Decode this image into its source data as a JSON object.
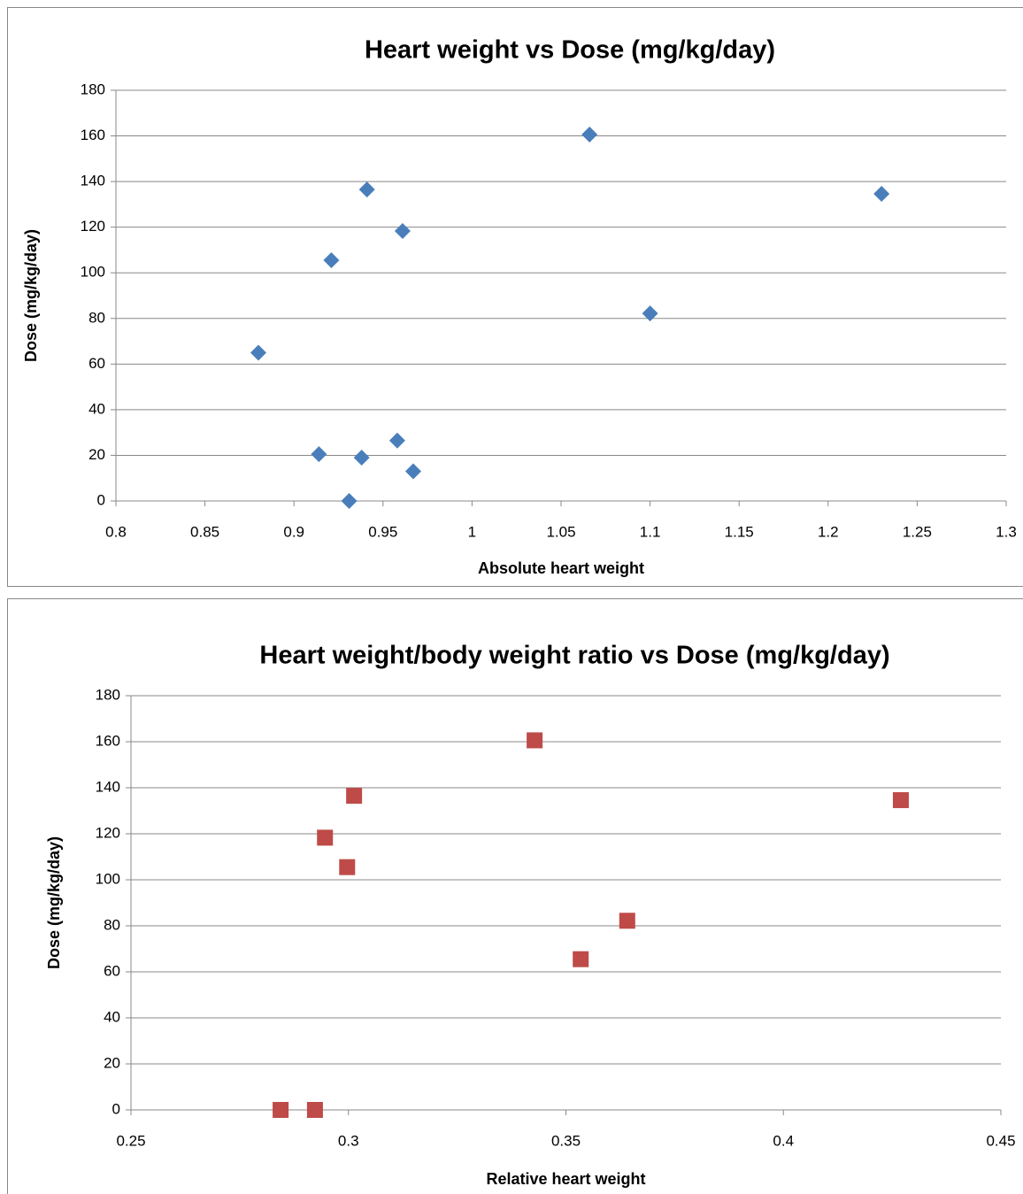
{
  "chart_data": [
    {
      "type": "scatter",
      "title": "Heart weight vs Dose (mg/kg/day)",
      "x_label": "Absolute heart weight",
      "y_label": "Dose (mg/kg/day)",
      "marker": "diamond",
      "color": "#4a7ebb",
      "x": [
        0.88,
        0.914,
        0.921,
        0.931,
        0.938,
        0.941,
        0.958,
        0.961,
        0.967,
        1.066,
        1.1,
        1.23
      ],
      "values": [
        65,
        20.5,
        105.5,
        0,
        19,
        136.5,
        26.5,
        118.3,
        13,
        160.6,
        82.2,
        134.6
      ],
      "xlim": [
        0.8,
        1.3
      ],
      "xticks": [
        0.8,
        0.85,
        0.9,
        0.95,
        1,
        1.05,
        1.1,
        1.15,
        1.2,
        1.25,
        1.3
      ],
      "ylim": [
        0,
        180
      ],
      "yticks": [
        0,
        20,
        40,
        60,
        80,
        100,
        120,
        140,
        160,
        180
      ],
      "grid": true
    },
    {
      "type": "scatter",
      "title": "Heart weight/body weight ratio vs Dose (mg/kg/day)",
      "x_label": "Relative heart weight",
      "y_label": "Dose (mg/kg/day)",
      "marker": "square",
      "color": "#be4b48",
      "x": [
        0.2844,
        0.2923,
        0.2946,
        0.2997,
        0.3013,
        0.3428,
        0.3534,
        0.3641,
        0.427
      ],
      "values": [
        0,
        0,
        118.3,
        105.5,
        136.5,
        160.6,
        65.5,
        82.2,
        134.6
      ],
      "xlim": [
        0.25,
        0.45
      ],
      "xticks": [
        0.25,
        0.3,
        0.35,
        0.4,
        0.45
      ],
      "ylim": [
        0,
        180
      ],
      "yticks": [
        0,
        20,
        40,
        60,
        80,
        100,
        120,
        140,
        160,
        180
      ],
      "grid": true
    }
  ]
}
